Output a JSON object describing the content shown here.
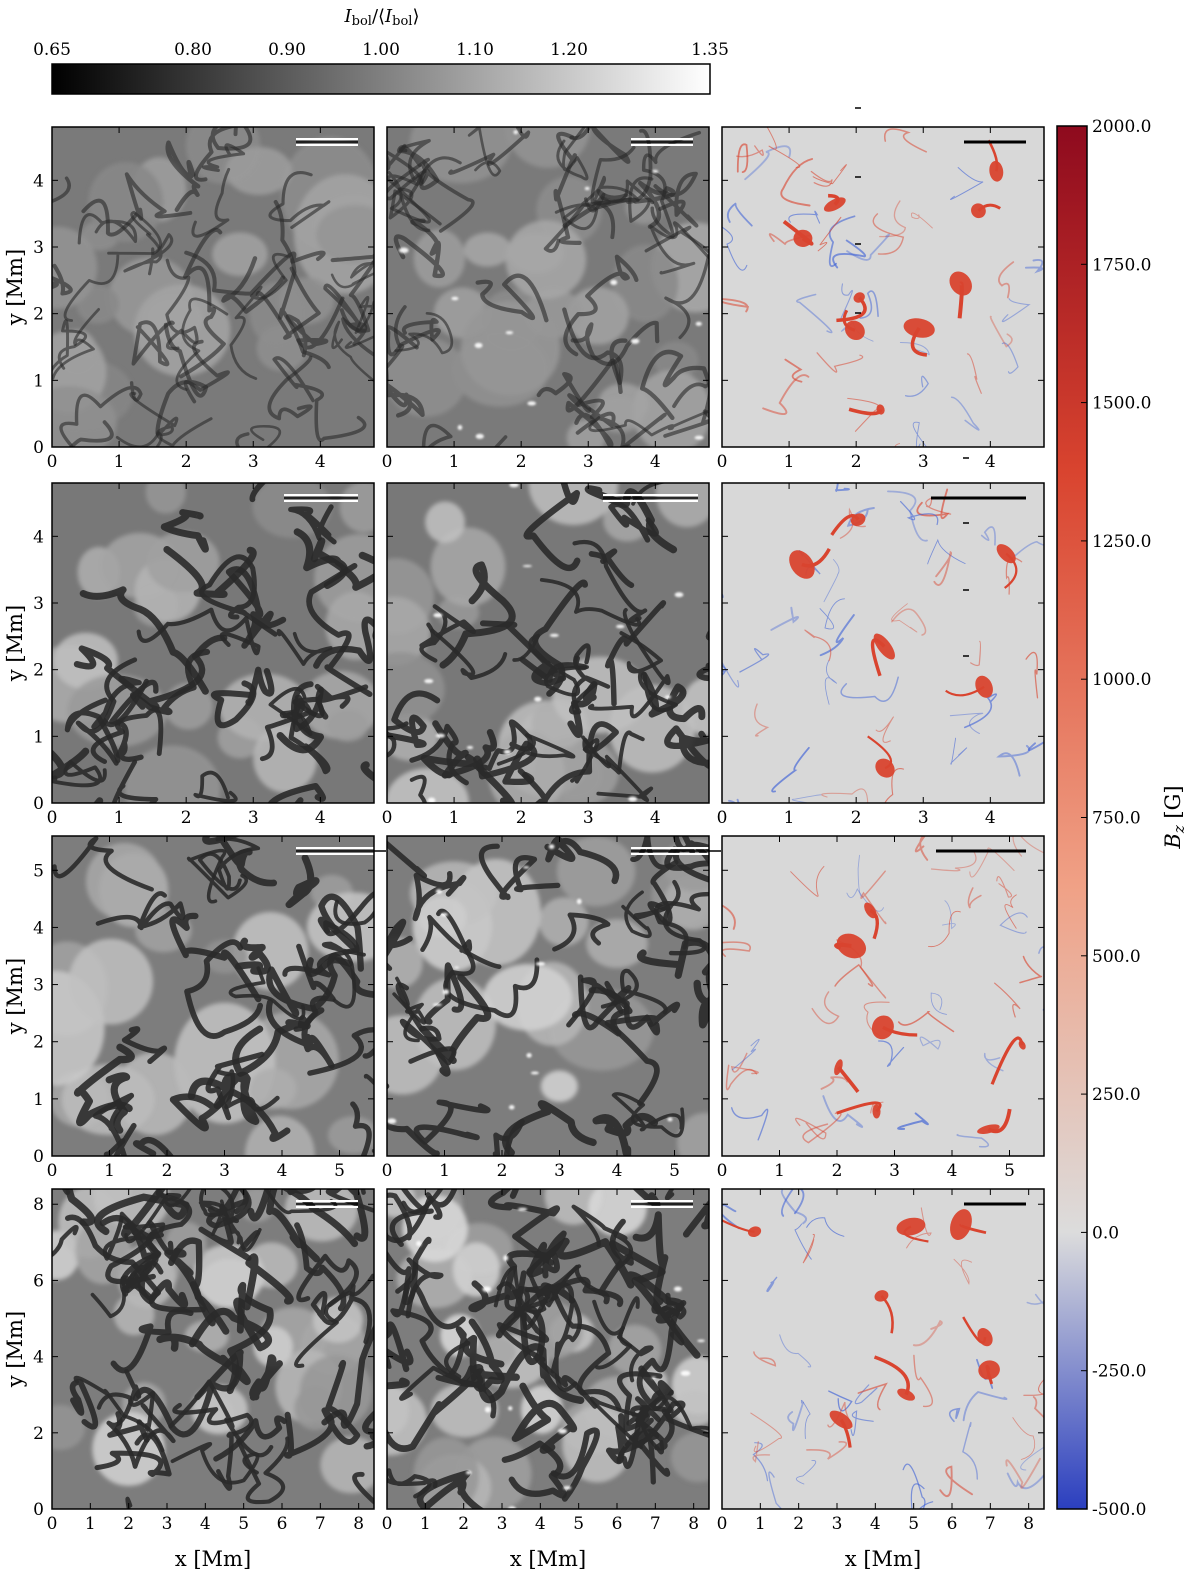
{
  "figure": {
    "top_colorbar": {
      "label_main": "I",
      "label_sub": "bol",
      "label_text": "I_bol/⟨I_bol⟩",
      "ticks": [
        "0.65",
        "0.80",
        "0.90",
        "1.00",
        "1.10",
        "1.20",
        "1.35"
      ],
      "range": [
        0.65,
        1.35
      ],
      "tick_values": [
        0.65,
        0.8,
        0.9,
        1.0,
        1.1,
        1.2,
        1.35
      ],
      "colormap": [
        "#000000",
        "#ffffff"
      ]
    },
    "right_colorbar": {
      "label": "B_z [G]",
      "ticks": [
        "2000.0",
        "1750.0",
        "1500.0",
        "1250.0",
        "1000.0",
        "750.0",
        "500.0",
        "250.0",
        "0.0",
        "-250.0",
        "-500.0"
      ],
      "tick_values": [
        2000,
        1750,
        1500,
        1250,
        1000,
        750,
        500,
        250,
        0,
        -250,
        -500
      ],
      "range": [
        -500,
        2000
      ],
      "colormap": [
        "#2b3fbf",
        "#dcdcdc",
        "#a50b22"
      ]
    },
    "axes": {
      "x_label": "x [Mm]",
      "y_label": "y [Mm]"
    },
    "rows": [
      {
        "xmax": 4.8,
        "ymax": 4.8,
        "x_ticks": [
          "0",
          "1",
          "2",
          "3",
          "4"
        ],
        "y_ticks": [
          "0",
          "1",
          "2",
          "3",
          "4"
        ]
      },
      {
        "xmax": 4.8,
        "ymax": 4.8,
        "x_ticks": [
          "0",
          "1",
          "2",
          "3",
          "4"
        ],
        "y_ticks": [
          "0",
          "1",
          "2",
          "3",
          "4"
        ]
      },
      {
        "xmax": 5.6,
        "ymax": 5.6,
        "x_ticks": [
          "0",
          "1",
          "2",
          "3",
          "4",
          "5"
        ],
        "y_ticks": [
          "0",
          "1",
          "2",
          "3",
          "4",
          "5"
        ]
      },
      {
        "xmax": 8.4,
        "ymax": 8.4,
        "x_ticks": [
          "0",
          "1",
          "2",
          "3",
          "4",
          "5",
          "6",
          "7",
          "8"
        ],
        "y_ticks": [
          "0",
          "2",
          "4",
          "6",
          "8"
        ]
      }
    ],
    "columns": [
      "intensity",
      "intensity",
      "bz"
    ],
    "colors": {
      "granule_bg": "#7a7a7a",
      "lane": "#2a2a2a",
      "bz_bg": "#d8d8d8",
      "bz_pos": "#d9442f",
      "bz_neg": "#3b5fd6"
    }
  },
  "chart_data": {
    "type": "heatmap",
    "title": "",
    "panels": 12,
    "rows": 4,
    "cols": 3,
    "xlabel": "x [Mm]",
    "ylabel": "y [Mm]",
    "colorbars": [
      {
        "quantity": "I_bol/⟨I_bol⟩",
        "range": [
          0.65,
          1.35
        ]
      },
      {
        "quantity": "B_z [G]",
        "range": [
          -500,
          2000
        ]
      }
    ],
    "row_extents_Mm": [
      4.8,
      4.8,
      5.6,
      8.4
    ]
  }
}
